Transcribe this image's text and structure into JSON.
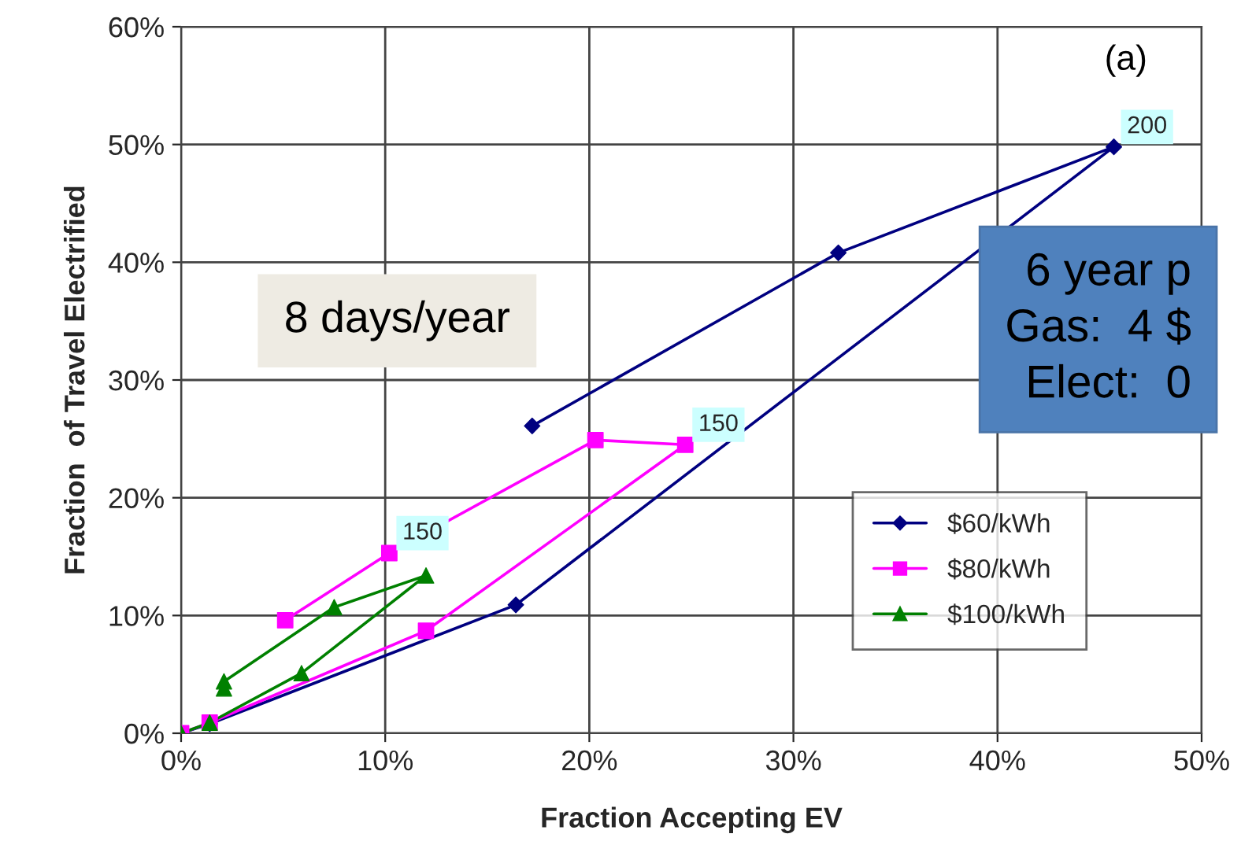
{
  "chart_data": {
    "type": "line",
    "xlabel": "Fraction Accepting EV",
    "ylabel": "Fraction  of Travel Electrified",
    "xlim": [
      0,
      50
    ],
    "ylim": [
      0,
      60
    ],
    "xticks": [
      {
        "value": 0,
        "label": "0%"
      },
      {
        "value": 10,
        "label": "10%"
      },
      {
        "value": 20,
        "label": "20%"
      },
      {
        "value": 30,
        "label": "30%"
      },
      {
        "value": 40,
        "label": "40%"
      },
      {
        "value": 50,
        "label": "50%"
      }
    ],
    "yticks": [
      {
        "value": 0,
        "label": "0%"
      },
      {
        "value": 10,
        "label": "10%"
      },
      {
        "value": 20,
        "label": "20%"
      },
      {
        "value": 30,
        "label": "30%"
      },
      {
        "value": 40,
        "label": "40%"
      },
      {
        "value": 50,
        "label": "50%"
      },
      {
        "value": 60,
        "label": "60%"
      }
    ],
    "grid": true,
    "legend": "bottom right",
    "series": [
      {
        "name": "$60/kWh",
        "color": "#000080",
        "marker": "diamond",
        "x": [
          0,
          1.4,
          16.4,
          45.7,
          32.2,
          17.2
        ],
        "values": [
          0,
          0.8,
          10.9,
          49.8,
          40.8,
          26.1
        ]
      },
      {
        "name": "$80/kWh",
        "color": "#ff00ff",
        "marker": "square",
        "x": [
          0,
          1.4,
          12.0,
          24.7,
          20.3,
          10.2,
          5.1
        ],
        "values": [
          0,
          0.9,
          8.7,
          24.5,
          24.9,
          15.3,
          9.6
        ]
      },
      {
        "name": "$100/kWh",
        "color": "#008000",
        "marker": "triangle",
        "x": [
          0,
          1.4,
          5.9,
          12.0,
          7.5,
          2.1,
          2.1
        ],
        "values": [
          0,
          0.9,
          5.1,
          13.4,
          10.7,
          4.4,
          3.8
        ]
      }
    ],
    "annotations": [
      "(a)",
      "8 days/year",
      "6 year p\nGas:  4 $\nElect:  0",
      {
        "text": "200",
        "x": 45.7,
        "y": 49.8
      },
      {
        "text": "150",
        "x": 24.7,
        "y": 24.5
      },
      {
        "text": "150",
        "x": 10.2,
        "y": 15.3
      }
    ]
  }
}
